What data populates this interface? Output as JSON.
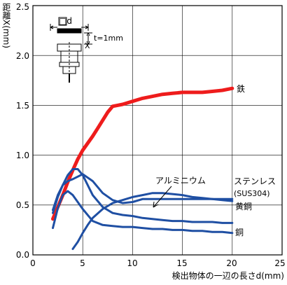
{
  "chart_data": {
    "type": "line",
    "xlabel": "検出物体の一辺の長さd(mm)",
    "ylabel": "距離X(mm)",
    "xlim": [
      0,
      25
    ],
    "ylim": [
      0,
      2.5
    ],
    "xticks": [
      "0",
      "5",
      "10",
      "15",
      "20",
      "25"
    ],
    "yticks": [
      "0.0",
      "0.5",
      "1.0",
      "1.5",
      "2.0",
      "2.5"
    ],
    "grid": true,
    "inset": {
      "square_label": "□d",
      "thickness_label": "t=1mm"
    },
    "annotation": {
      "text": "アルミニウム"
    },
    "series": [
      {
        "name": "鉄",
        "color": "#ee1c1c",
        "width": 5,
        "x": [
          2.0,
          2.5,
          3.0,
          3.5,
          4.0,
          4.5,
          5.0,
          5.5,
          6.0,
          6.5,
          7.0,
          7.5,
          8.0,
          8.5,
          9.0,
          10.0,
          11.0,
          12.0,
          13.0,
          14.0,
          15.0,
          16.0,
          17.0,
          18.0,
          19.0,
          20.0
        ],
        "y": [
          0.36,
          0.48,
          0.6,
          0.73,
          0.85,
          0.96,
          1.05,
          1.12,
          1.19,
          1.27,
          1.35,
          1.43,
          1.49,
          1.5,
          1.51,
          1.54,
          1.57,
          1.59,
          1.61,
          1.62,
          1.63,
          1.63,
          1.63,
          1.64,
          1.65,
          1.67
        ]
      },
      {
        "name": "ステンレス(SUS304)",
        "color": "#1f4fa3",
        "width": 3,
        "x": [
          2.0,
          2.5,
          3.0,
          3.5,
          4.0,
          5.0,
          6.0,
          7.0,
          8.0,
          9.0,
          10.0,
          11.0,
          12.0,
          13.0,
          14.0,
          15.0,
          16.0,
          17.0,
          18.0,
          19.0,
          20.0
        ],
        "y": [
          0.45,
          0.6,
          0.7,
          0.74,
          0.76,
          0.81,
          0.74,
          0.62,
          0.55,
          0.52,
          0.53,
          0.56,
          0.56,
          0.56,
          0.56,
          0.56,
          0.56,
          0.56,
          0.56,
          0.56,
          0.56
        ]
      },
      {
        "name": "黄銅",
        "color": "#1f4fa3",
        "width": 3,
        "x": [
          2.0,
          2.5,
          3.0,
          3.5,
          4.0,
          4.5,
          5.0,
          5.5,
          6.0,
          7.0,
          8.0,
          9.0,
          10.0,
          11.0,
          12.0,
          13.0,
          14.0,
          15.0,
          16.0,
          17.0,
          18.0,
          19.0,
          20.0
        ],
        "y": [
          0.42,
          0.58,
          0.7,
          0.8,
          0.86,
          0.86,
          0.8,
          0.7,
          0.6,
          0.48,
          0.42,
          0.4,
          0.39,
          0.37,
          0.36,
          0.35,
          0.34,
          0.34,
          0.33,
          0.33,
          0.33,
          0.32,
          0.32
        ]
      },
      {
        "name": "銅",
        "color": "#1f4fa3",
        "width": 3,
        "x": [
          2.0,
          2.5,
          3.0,
          3.5,
          4.0,
          5.0,
          6.0,
          7.0,
          8.0,
          9.0,
          10.0,
          11.0,
          12.0,
          13.0,
          14.0,
          15.0,
          16.0,
          17.0,
          18.0,
          19.0,
          20.0
        ],
        "y": [
          0.27,
          0.47,
          0.6,
          0.64,
          0.6,
          0.46,
          0.34,
          0.3,
          0.29,
          0.28,
          0.28,
          0.27,
          0.26,
          0.26,
          0.25,
          0.25,
          0.24,
          0.24,
          0.23,
          0.23,
          0.22
        ]
      },
      {
        "name": "アルミニウム",
        "color": "#1f4fa3",
        "width": 3,
        "x": [
          4.0,
          4.5,
          5.0,
          5.5,
          6.0,
          7.0,
          8.0,
          9.0,
          10.0,
          11.0,
          12.0,
          13.0,
          14.0,
          15.0,
          16.0,
          17.0,
          18.0,
          19.0,
          20.0
        ],
        "y": [
          0.06,
          0.13,
          0.22,
          0.3,
          0.37,
          0.46,
          0.52,
          0.55,
          0.58,
          0.6,
          0.62,
          0.62,
          0.61,
          0.6,
          0.58,
          0.57,
          0.56,
          0.55,
          0.54
        ]
      }
    ],
    "series_labels": {
      "iron": "鉄",
      "stainless_1": "ステンレス",
      "stainless_2": "(SUS304)",
      "brass": "黄銅",
      "copper": "銅"
    }
  }
}
